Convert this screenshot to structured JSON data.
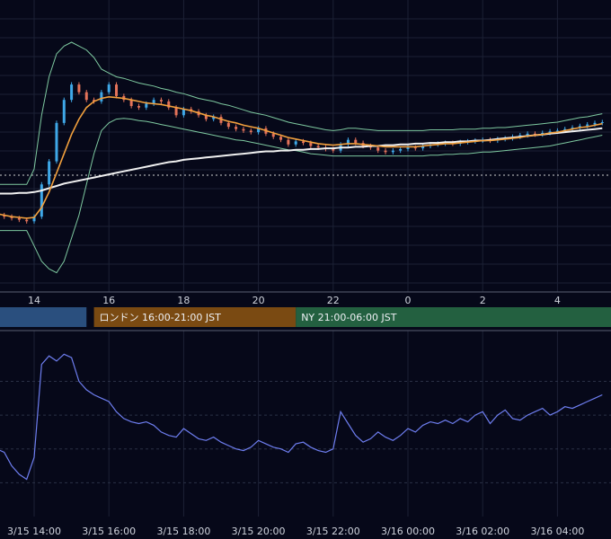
{
  "chart_data": [
    {
      "type": "candlestick",
      "panel": "price",
      "x_tick_labels": [
        "14",
        "16",
        "18",
        "20",
        "22",
        "0",
        "2",
        "4"
      ],
      "sessions": [
        {
          "label": "",
          "color": "#2a4f7e"
        },
        {
          "label": "ロンドン 16:00-21:00 JST",
          "color": "#7a4a12"
        },
        {
          "label": "NY 21:00-06:00 JST",
          "color": "#236040"
        }
      ],
      "overlays": [
        {
          "kind": "bollinger-bands",
          "color": "#7ec9a0"
        },
        {
          "kind": "moving-average-short",
          "color": "#f2a03d"
        },
        {
          "kind": "moving-average-long",
          "color": "#f0f0f0"
        },
        {
          "kind": "reference-line-dotted",
          "color": "#cfcfcf"
        }
      ],
      "colors": {
        "up": "#3fa8e8",
        "down": "#e4735a"
      },
      "hours": [
        13.0,
        13.2,
        13.4,
        13.6,
        13.8,
        14.0,
        14.2,
        14.4,
        14.6,
        14.8,
        15.0,
        15.2,
        15.4,
        15.6,
        15.8,
        16.0,
        16.2,
        16.4,
        16.6,
        16.8,
        17.0,
        17.2,
        17.4,
        17.6,
        17.8,
        18.0,
        18.2,
        18.4,
        18.6,
        18.8,
        19.0,
        19.2,
        19.4,
        19.6,
        19.8,
        20.0,
        20.2,
        20.4,
        20.6,
        20.8,
        21.0,
        21.2,
        21.4,
        21.6,
        21.8,
        22.0,
        22.2,
        22.4,
        22.6,
        22.8,
        23.0,
        23.2,
        23.4,
        23.6,
        23.8,
        24.0,
        24.2,
        24.4,
        24.6,
        24.8,
        25.0,
        25.2,
        25.4,
        25.6,
        25.8,
        26.0,
        26.2,
        26.4,
        26.6,
        26.8,
        27.0,
        27.2,
        27.4,
        27.6,
        27.8,
        28.0,
        28.2,
        28.4,
        28.6,
        28.8,
        29.0,
        29.2
      ],
      "prices": [
        20,
        18,
        16,
        14,
        12,
        18,
        60,
        90,
        140,
        170,
        190,
        180,
        170,
        168,
        180,
        190,
        175,
        170,
        162,
        160,
        165,
        170,
        168,
        160,
        150,
        158,
        155,
        150,
        145,
        148,
        140,
        135,
        132,
        130,
        128,
        133,
        126,
        122,
        118,
        112,
        116,
        114,
        110,
        108,
        106,
        104,
        112,
        118,
        114,
        110,
        108,
        104,
        102,
        104,
        106,
        108,
        107,
        110,
        112,
        113,
        114,
        113,
        115,
        116,
        117,
        118,
        117,
        119,
        120,
        122,
        124,
        126,
        125,
        127,
        129,
        130,
        132,
        134,
        136,
        138,
        140,
        141
      ],
      "ma_short": [
        22,
        20,
        18,
        17,
        16,
        17,
        30,
        50,
        75,
        100,
        125,
        145,
        160,
        168,
        172,
        174,
        173,
        172,
        170,
        168,
        166,
        165,
        164,
        162,
        160,
        158,
        156,
        153,
        150,
        148,
        145,
        142,
        140,
        137,
        135,
        133,
        130,
        127,
        124,
        121,
        119,
        117,
        115,
        113,
        112,
        111,
        112,
        113,
        113,
        112,
        111,
        110,
        109,
        109,
        109,
        109,
        109,
        110,
        111,
        112,
        113,
        113,
        114,
        115,
        116,
        117,
        117,
        118,
        119,
        120,
        121,
        123,
        124,
        125,
        127,
        128,
        130,
        132,
        134,
        135,
        137,
        139
      ],
      "ma_long": [
        48,
        48,
        48,
        49,
        49,
        50,
        52,
        55,
        58,
        61,
        63,
        65,
        67,
        69,
        71,
        73,
        75,
        77,
        79,
        81,
        83,
        85,
        87,
        89,
        90,
        92,
        93,
        94,
        95,
        96,
        97,
        98,
        99,
        100,
        101,
        102,
        103,
        103,
        104,
        104,
        105,
        105,
        106,
        106,
        107,
        107,
        108,
        108,
        109,
        109,
        110,
        110,
        111,
        111,
        112,
        112,
        113,
        113,
        114,
        114,
        115,
        115,
        116,
        116,
        117,
        117,
        118,
        119,
        120,
        121,
        122,
        123,
        124,
        125,
        126,
        127,
        128,
        129,
        130,
        131,
        132,
        133
      ],
      "bb_upper": [
        60,
        60,
        60,
        60,
        60,
        80,
        150,
        200,
        230,
        240,
        245,
        240,
        235,
        225,
        210,
        205,
        200,
        198,
        195,
        192,
        190,
        188,
        185,
        183,
        180,
        178,
        175,
        172,
        170,
        168,
        165,
        163,
        160,
        157,
        154,
        152,
        150,
        147,
        144,
        141,
        139,
        137,
        135,
        133,
        131,
        130,
        131,
        133,
        133,
        132,
        131,
        130,
        130,
        130,
        130,
        130,
        130,
        130,
        131,
        131,
        131,
        131,
        132,
        132,
        132,
        133,
        133,
        134,
        134,
        135,
        136,
        137,
        138,
        139,
        140,
        141,
        143,
        145,
        147,
        148,
        150,
        152
      ],
      "bb_lower": [
        0,
        0,
        0,
        0,
        0,
        -20,
        -40,
        -50,
        -55,
        -40,
        -10,
        20,
        60,
        100,
        130,
        140,
        145,
        146,
        145,
        143,
        142,
        140,
        138,
        136,
        134,
        132,
        130,
        128,
        126,
        124,
        122,
        120,
        118,
        117,
        115,
        113,
        111,
        109,
        107,
        105,
        104,
        102,
        100,
        99,
        98,
        97,
        97,
        97,
        97,
        97,
        97,
        97,
        97,
        97,
        97,
        97,
        97,
        97,
        98,
        98,
        99,
        99,
        100,
        100,
        101,
        102,
        102,
        103,
        104,
        105,
        106,
        107,
        108,
        109,
        110,
        112,
        114,
        116,
        118,
        120,
        122,
        124
      ],
      "ref_level": 72,
      "ylim": [
        -80,
        300
      ]
    },
    {
      "type": "line",
      "panel": "oscillator",
      "color": "#6e7ef0",
      "x_tick_labels": [
        "3/15 14:00",
        "3/15 16:00",
        "3/15 18:00",
        "3/15 20:00",
        "3/15 22:00",
        "3/16 00:00",
        "3/16 02:00",
        "3/16 04:00"
      ],
      "hours": [
        13.0,
        13.2,
        13.4,
        13.6,
        13.8,
        14.0,
        14.2,
        14.4,
        14.6,
        14.8,
        15.0,
        15.2,
        15.4,
        15.6,
        15.8,
        16.0,
        16.2,
        16.4,
        16.6,
        16.8,
        17.0,
        17.2,
        17.4,
        17.6,
        17.8,
        18.0,
        18.2,
        18.4,
        18.6,
        18.8,
        19.0,
        19.2,
        19.4,
        19.6,
        19.8,
        20.0,
        20.2,
        20.4,
        20.6,
        20.8,
        21.0,
        21.2,
        21.4,
        21.6,
        21.8,
        22.0,
        22.2,
        22.4,
        22.6,
        22.8,
        23.0,
        23.2,
        23.4,
        23.6,
        23.8,
        24.0,
        24.2,
        24.4,
        24.6,
        24.8,
        25.0,
        25.2,
        25.4,
        25.6,
        25.8,
        26.0,
        26.2,
        26.4,
        26.6,
        26.8,
        27.0,
        27.2,
        27.4,
        27.6,
        27.8,
        28.0,
        28.2,
        28.4,
        28.6,
        28.8,
        29.0,
        29.2
      ],
      "values": [
        40,
        38,
        30,
        25,
        22,
        35,
        90,
        95,
        92,
        96,
        94,
        80,
        75,
        72,
        70,
        68,
        62,
        58,
        56,
        55,
        56,
        54,
        50,
        48,
        47,
        52,
        49,
        46,
        45,
        47,
        44,
        42,
        40,
        39,
        41,
        45,
        43,
        41,
        40,
        38,
        43,
        44,
        41,
        39,
        38,
        40,
        62,
        55,
        48,
        44,
        46,
        50,
        47,
        45,
        48,
        52,
        50,
        54,
        56,
        55,
        57,
        55,
        58,
        56,
        60,
        62,
        55,
        60,
        63,
        58,
        57,
        60,
        62,
        64,
        60,
        62,
        65,
        64,
        66,
        68,
        70,
        72
      ],
      "ylim": [
        0,
        110
      ]
    }
  ]
}
